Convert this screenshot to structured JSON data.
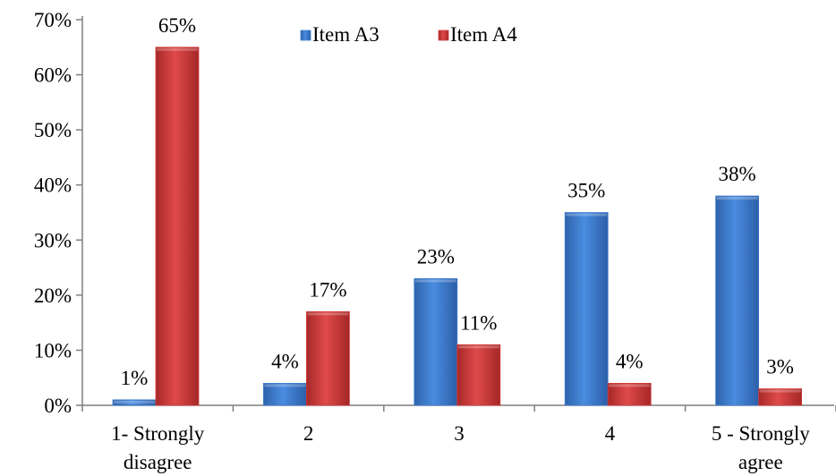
{
  "chart_data": {
    "type": "bar",
    "categories": [
      [
        "1- Strongly",
        "disagree"
      ],
      [
        "2"
      ],
      [
        "3"
      ],
      [
        "4"
      ],
      [
        "5 - Strongly",
        "agree"
      ]
    ],
    "series": [
      {
        "name": "Item A3",
        "values": [
          1,
          4,
          23,
          35,
          38
        ],
        "labels": [
          "1%",
          "4%",
          "23%",
          "35%",
          "38%"
        ],
        "color": "#3f7fd0"
      },
      {
        "name": "Item A4",
        "values": [
          65,
          17,
          11,
          4,
          3
        ],
        "labels": [
          "65%",
          "17%",
          "11%",
          "4%",
          "3%"
        ],
        "color": "#d23c3c"
      }
    ],
    "y_ticks": [
      "0%",
      "10%",
      "20%",
      "30%",
      "40%",
      "50%",
      "60%",
      "70%"
    ],
    "ylim": [
      0,
      70
    ],
    "grid": false,
    "legend_position": "top-center"
  }
}
